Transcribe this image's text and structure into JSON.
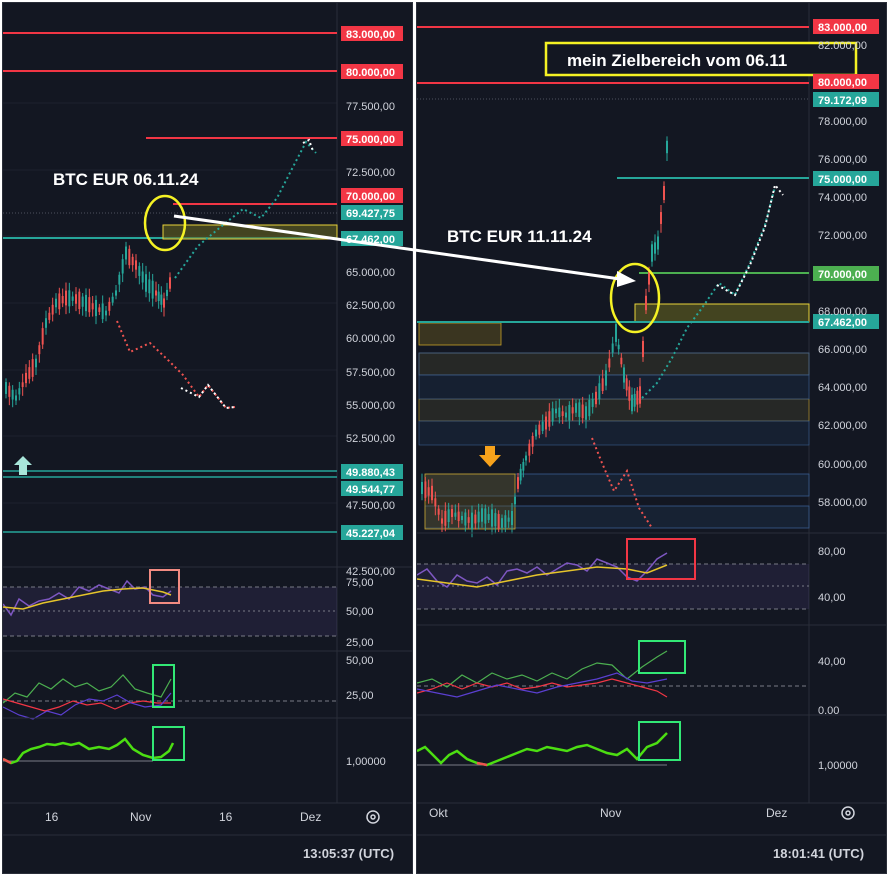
{
  "left_chart": {
    "annotation": "BTC EUR 06.11.24",
    "price_ticks": [
      "83.000,00",
      "80.000,00",
      "77.500,00",
      "75.000,00",
      "72.500,00",
      "70.000,00",
      "69.427,75",
      "67.462,00",
      "65.000,00",
      "62.500,00",
      "60.000,00",
      "57.500,00",
      "55.000,00",
      "52.500,00",
      "49.880,43",
      "49.544,77",
      "47.500,00",
      "45.227,04",
      "42.500,00"
    ],
    "osc1_ticks": [
      "75,00",
      "50,00",
      "25,00"
    ],
    "osc2_ticks": [
      "50,00",
      "25,00"
    ],
    "osc3_ticks": [
      "1,00000"
    ],
    "time_labels": [
      "16",
      "Nov",
      "16",
      "Dez"
    ],
    "clock": "13:05:37 (UTC)"
  },
  "right_chart": {
    "annotation": "BTC EUR 11.11.24",
    "target_label": "mein Zielbereich vom 06.11",
    "price_ticks": [
      "83.000,00",
      "82.000,00",
      "80.000,00",
      "79.172,09",
      "78.000,00",
      "76.000,00",
      "75.000,00",
      "74.000,00",
      "72.000,00",
      "70.000,00",
      "68.000,00",
      "67.462,00",
      "66.000,00",
      "64.000,00",
      "62.000,00",
      "60.000,00",
      "58.000,00"
    ],
    "osc1_ticks": [
      "80,00",
      "40,00"
    ],
    "osc2_ticks": [
      "40,00",
      "0.00"
    ],
    "osc3_ticks": [
      "1,00000"
    ],
    "time_labels": [
      "Okt",
      "Nov",
      "Dez"
    ],
    "clock": "18:01:41 (UTC)"
  },
  "colors": {
    "background": "#131722",
    "resistance": "#f23645",
    "support": "#26a69a",
    "candle_up": "#26a69a",
    "candle_down": "#ef5350",
    "zone_yellow": "#e8d33a",
    "circle": "#f5f224",
    "green_badge": "#4caf50",
    "oscillator_purple": "#7e57c2",
    "oscillator_yellow": "#e5c42b",
    "indicator_green": "#4cde12",
    "arrow_orange": "#f7a21b",
    "arrow_teal": "#a8e6da"
  }
}
